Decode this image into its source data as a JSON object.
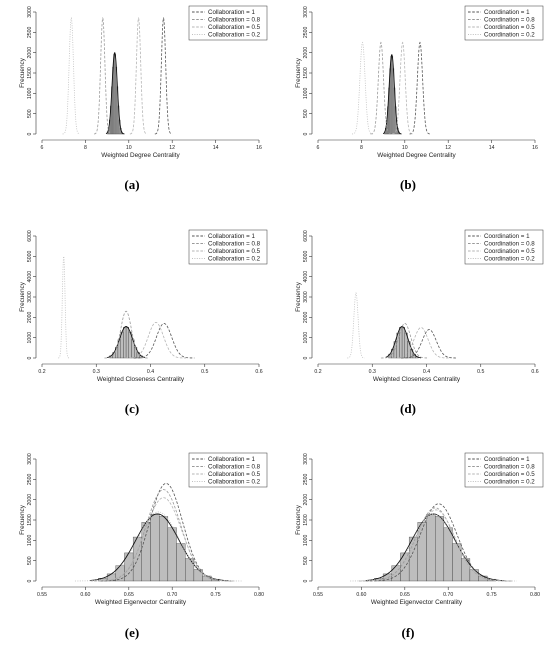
{
  "chart_data": [
    {
      "type": "histogram-density",
      "caption": "(a)",
      "xlabel": "Weighted Degree Centrality",
      "ylabel": "Frecuency",
      "xlim": [
        6,
        16
      ],
      "ylim": [
        0,
        3000
      ],
      "x_ticks": [
        "6",
        "8",
        "10",
        "12",
        "14",
        "16"
      ],
      "y_ticks": [
        "0",
        "500",
        "1000",
        "1500",
        "2000",
        "2500",
        "3000"
      ],
      "legend_position": "top-right",
      "series": [
        {
          "name": "Collaboration = 1",
          "mean": 11.6,
          "sd": 0.1,
          "peak": 2850,
          "style": "dashed",
          "color": "#555555"
        },
        {
          "name": "Collaboration = 0.8",
          "mean": 8.8,
          "sd": 0.1,
          "peak": 2850,
          "style": "dashed",
          "color": "#9a9a9a"
        },
        {
          "name": "Collaboration = 0.5",
          "mean": 10.45,
          "sd": 0.1,
          "peak": 2850,
          "style": "dashed",
          "color": "#b5b5b5"
        },
        {
          "name": "Collaboration = 0.2",
          "mean": 7.35,
          "sd": 0.1,
          "peak": 2850,
          "style": "dotted",
          "color": "#c0c0c0"
        }
      ],
      "histogram": {
        "mean": 9.35,
        "sd": 0.12,
        "peak": 2000,
        "bins": [
          9.0,
          9.05,
          9.1,
          9.15,
          9.2,
          9.25,
          9.3,
          9.35,
          9.4,
          9.45,
          9.5,
          9.55,
          9.6,
          9.65,
          9.7
        ]
      },
      "fit_line": {
        "mean": 9.35,
        "sd": 0.12,
        "peak": 2000
      }
    },
    {
      "type": "histogram-density",
      "caption": "(b)",
      "xlabel": "Weighted Degree Centrality",
      "ylabel": "Frecuency",
      "xlim": [
        6,
        16
      ],
      "ylim": [
        0,
        3000
      ],
      "x_ticks": [
        "6",
        "8",
        "10",
        "12",
        "14",
        "16"
      ],
      "y_ticks": [
        "0",
        "500",
        "1000",
        "1500",
        "2000",
        "2500",
        "3000"
      ],
      "legend_position": "top-right",
      "series": [
        {
          "name": "Coordination = 1",
          "mean": 10.7,
          "sd": 0.12,
          "peak": 2250,
          "style": "dashed",
          "color": "#555555"
        },
        {
          "name": "Coordination = 0.8",
          "mean": 8.9,
          "sd": 0.12,
          "peak": 2250,
          "style": "dashed",
          "color": "#9a9a9a"
        },
        {
          "name": "Coordination = 0.5",
          "mean": 9.9,
          "sd": 0.12,
          "peak": 2250,
          "style": "dashed",
          "color": "#b5b5b5"
        },
        {
          "name": "Coordination = 0.2",
          "mean": 8.05,
          "sd": 0.12,
          "peak": 2250,
          "style": "dotted",
          "color": "#c0c0c0"
        }
      ],
      "histogram": {
        "mean": 9.4,
        "sd": 0.12,
        "peak": 1950,
        "bins": [
          9.05,
          9.1,
          9.15,
          9.2,
          9.25,
          9.3,
          9.35,
          9.4,
          9.45,
          9.5,
          9.55,
          9.6,
          9.65,
          9.7,
          9.75
        ]
      },
      "fit_line": {
        "mean": 9.4,
        "sd": 0.12,
        "peak": 1950
      }
    },
    {
      "type": "histogram-density",
      "caption": "(c)",
      "xlabel": "Weighted Closeness Centrality",
      "ylabel": "Frecuency",
      "xlim": [
        0.2,
        0.6
      ],
      "ylim": [
        0,
        6000
      ],
      "x_ticks": [
        "0.2",
        "0.3",
        "0.4",
        "0.5",
        "0.6"
      ],
      "y_ticks": [
        "0",
        "1000",
        "2000",
        "3000",
        "4000",
        "5000",
        "6000"
      ],
      "legend_position": "top-right",
      "series": [
        {
          "name": "Collaboration = 1",
          "mean": 0.425,
          "sd": 0.014,
          "peak": 1700,
          "style": "dashed",
          "color": "#555555"
        },
        {
          "name": "Collaboration = 0.8",
          "mean": 0.355,
          "sd": 0.01,
          "peak": 2300,
          "style": "dashed",
          "color": "#9a9a9a"
        },
        {
          "name": "Collaboration = 0.5",
          "mean": 0.41,
          "sd": 0.014,
          "peak": 1750,
          "style": "dashed",
          "color": "#b5b5b5"
        },
        {
          "name": "Collaboration = 0.2",
          "mean": 0.24,
          "sd": 0.0025,
          "peak": 5000,
          "style": "dotted",
          "color": "#c0c0c0"
        }
      ],
      "histogram": {
        "mean": 0.355,
        "sd": 0.012,
        "peak": 1550,
        "bins": [
          0.325,
          0.33,
          0.335,
          0.34,
          0.345,
          0.35,
          0.355,
          0.36,
          0.365,
          0.37,
          0.375,
          0.38
        ]
      },
      "fit_line": {
        "mean": 0.355,
        "sd": 0.012,
        "peak": 1550
      }
    },
    {
      "type": "histogram-density",
      "caption": "(d)",
      "xlabel": "Weighted Closeness Centrality",
      "ylabel": "Frecuency",
      "xlim": [
        0.2,
        0.6
      ],
      "ylim": [
        0,
        6000
      ],
      "x_ticks": [
        "0.2",
        "0.3",
        "0.4",
        "0.5",
        "0.6"
      ],
      "y_ticks": [
        "0",
        "1000",
        "2000",
        "3000",
        "4000",
        "5000",
        "6000"
      ],
      "legend_position": "top-right",
      "series": [
        {
          "name": "Coordination = 1",
          "mean": 0.405,
          "sd": 0.013,
          "peak": 1400,
          "style": "dashed",
          "color": "#555555"
        },
        {
          "name": "Coordination = 0.8",
          "mean": 0.36,
          "sd": 0.011,
          "peak": 1700,
          "style": "dashed",
          "color": "#9a9a9a"
        },
        {
          "name": "Coordination = 0.5",
          "mean": 0.39,
          "sd": 0.013,
          "peak": 1500,
          "style": "dashed",
          "color": "#b5b5b5"
        },
        {
          "name": "Coordination = 0.2",
          "mean": 0.27,
          "sd": 0.004,
          "peak": 3200,
          "style": "dotted",
          "color": "#c0c0c0"
        }
      ],
      "histogram": {
        "mean": 0.355,
        "sd": 0.011,
        "peak": 1550,
        "bins": [
          0.33,
          0.335,
          0.34,
          0.345,
          0.35,
          0.355,
          0.36,
          0.365,
          0.37,
          0.375,
          0.38
        ]
      },
      "fit_line": {
        "mean": 0.355,
        "sd": 0.011,
        "peak": 1550
      }
    },
    {
      "type": "histogram-density",
      "caption": "(e)",
      "xlabel": "Weighted Eigenvector Centrality",
      "ylabel": "Frecuency",
      "xlim": [
        0.55,
        0.8
      ],
      "ylim": [
        0,
        3000
      ],
      "x_ticks": [
        "0.55",
        "0.60",
        "0.65",
        "0.70",
        "0.75",
        "0.80"
      ],
      "y_ticks": [
        "0",
        "500",
        "1000",
        "1500",
        "2000",
        "2500",
        "3000"
      ],
      "legend_position": "top-right",
      "series": [
        {
          "name": "Collaboration = 1",
          "mean": 0.693,
          "sd": 0.019,
          "peak": 2400,
          "style": "dashed",
          "color": "#555555"
        },
        {
          "name": "Collaboration = 0.8",
          "mean": 0.69,
          "sd": 0.02,
          "peak": 2250,
          "style": "dashed",
          "color": "#9a9a9a"
        },
        {
          "name": "Collaboration = 0.5",
          "mean": 0.69,
          "sd": 0.021,
          "peak": 2050,
          "style": "dashed",
          "color": "#b5b5b5"
        },
        {
          "name": "Collaboration = 0.2",
          "mean": 0.684,
          "sd": 0.024,
          "peak": 1700,
          "style": "dotted",
          "color": "#c0c0c0"
        }
      ],
      "histogram": {
        "mean": 0.683,
        "sd": 0.025,
        "peak": 1650,
        "bins": [
          0.615,
          0.625,
          0.635,
          0.645,
          0.655,
          0.665,
          0.675,
          0.685,
          0.695,
          0.705,
          0.715,
          0.725,
          0.735,
          0.745
        ]
      },
      "fit_line": {
        "mean": 0.683,
        "sd": 0.025,
        "peak": 1650
      }
    },
    {
      "type": "histogram-density",
      "caption": "(f)",
      "xlabel": "Weighted Eigenvector Centrality",
      "ylabel": "Frecuency",
      "xlim": [
        0.55,
        0.8
      ],
      "ylim": [
        0,
        3000
      ],
      "x_ticks": [
        "0.55",
        "0.60",
        "0.65",
        "0.70",
        "0.75",
        "0.80"
      ],
      "y_ticks": [
        "0",
        "500",
        "1000",
        "1500",
        "2000",
        "2500",
        "3000"
      ],
      "legend_position": "top-right",
      "series": [
        {
          "name": "Coordination = 1",
          "mean": 0.689,
          "sd": 0.021,
          "peak": 1900,
          "style": "dashed",
          "color": "#555555"
        },
        {
          "name": "Coordination = 0.8",
          "mean": 0.685,
          "sd": 0.022,
          "peak": 1800,
          "style": "dashed",
          "color": "#9a9a9a"
        },
        {
          "name": "Coordination = 0.5",
          "mean": 0.686,
          "sd": 0.022,
          "peak": 1750,
          "style": "dashed",
          "color": "#b5b5b5"
        },
        {
          "name": "Coordination = 0.2",
          "mean": 0.683,
          "sd": 0.024,
          "peak": 1650,
          "style": "dotted",
          "color": "#c0c0c0"
        }
      ],
      "histogram": {
        "mean": 0.683,
        "sd": 0.025,
        "peak": 1650,
        "bins": [
          0.615,
          0.625,
          0.635,
          0.645,
          0.655,
          0.665,
          0.675,
          0.685,
          0.695,
          0.705,
          0.715,
          0.725,
          0.735,
          0.745
        ]
      },
      "fit_line": {
        "mean": 0.683,
        "sd": 0.025,
        "peak": 1650
      }
    }
  ]
}
